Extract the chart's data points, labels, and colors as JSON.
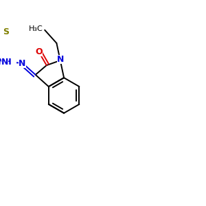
{
  "bond_color": "#000000",
  "bond_width": 1.4,
  "atom_colors": {
    "N": "#0000dd",
    "O": "#dd0000",
    "S": "#808000"
  },
  "font_size": 9,
  "font_size_small": 8,
  "bg_color": "#ffffff"
}
